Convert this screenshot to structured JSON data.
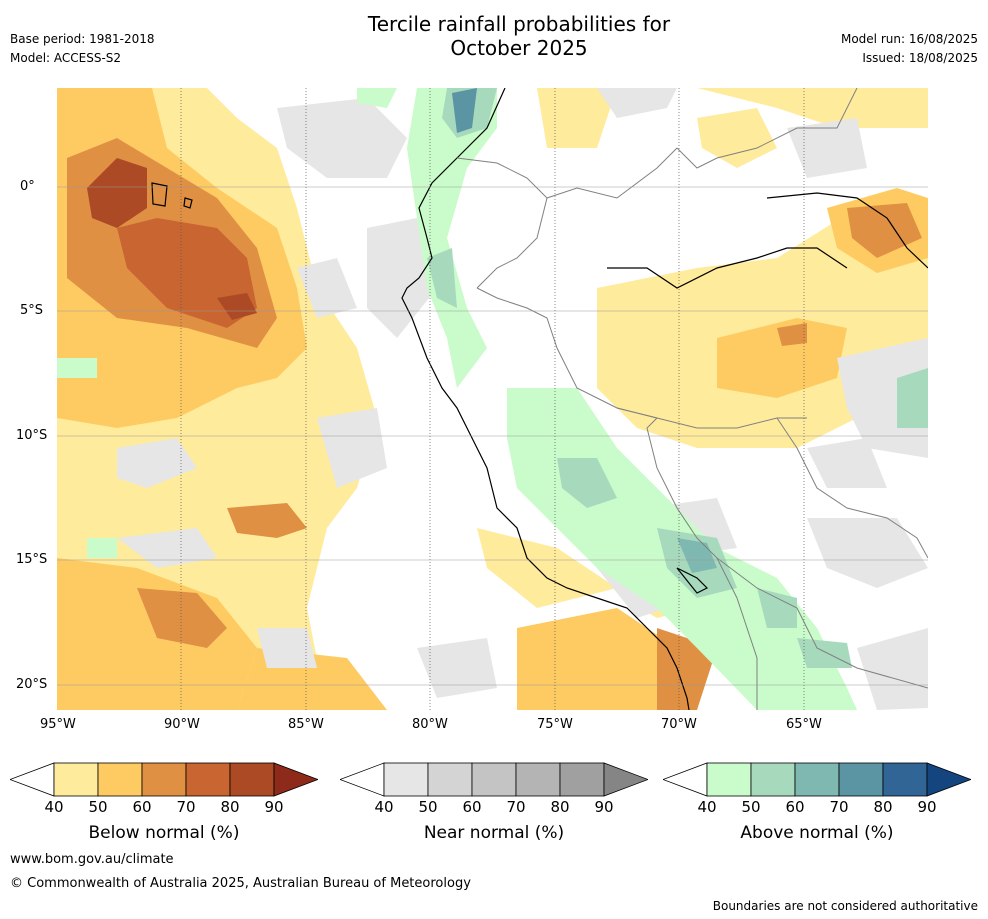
{
  "header": {
    "title_line1": "Tercile rainfall probabilities for",
    "title_line2": "October 2025",
    "base_period": "Base period: 1981-2018",
    "model": "Model: ACCESS-S2",
    "model_run": "Model run: 16/08/2025",
    "issued": "Issued: 18/08/2025"
  },
  "map": {
    "lon_ticks": [
      "95°W",
      "90°W",
      "85°W",
      "80°W",
      "75°W",
      "70°W",
      "65°W"
    ],
    "lat_ticks": [
      "0°",
      "5°S",
      "10°S",
      "15°S",
      "20°S"
    ]
  },
  "colorbars": [
    {
      "label": "Below normal (%)",
      "ticks": [
        "40",
        "50",
        "60",
        "70",
        "80",
        "90"
      ],
      "colors": [
        "#ffffff",
        "#ffeb9c",
        "#fecb63",
        "#e09043",
        "#c96531",
        "#ac4a25",
        "#8e2a1a"
      ]
    },
    {
      "label": "Near normal (%)",
      "ticks": [
        "40",
        "50",
        "60",
        "70",
        "80",
        "90"
      ],
      "colors": [
        "#ffffff",
        "#e6e6e6",
        "#d4d4d4",
        "#c4c4c4",
        "#b4b4b4",
        "#a0a0a0",
        "#858585"
      ]
    },
    {
      "label": "Above normal (%)",
      "ticks": [
        "40",
        "50",
        "60",
        "70",
        "80",
        "90"
      ],
      "colors": [
        "#ffffff",
        "#c9fcca",
        "#a7dabd",
        "#7fb8b0",
        "#5b94a3",
        "#316596",
        "#14457e"
      ]
    }
  ],
  "footer": {
    "url": "www.bom.gov.au/climate",
    "copyright": "© Commonwealth of Australia 2025, Australian Bureau of Meteorology",
    "disclaimer": "Boundaries are not considered authoritative"
  }
}
